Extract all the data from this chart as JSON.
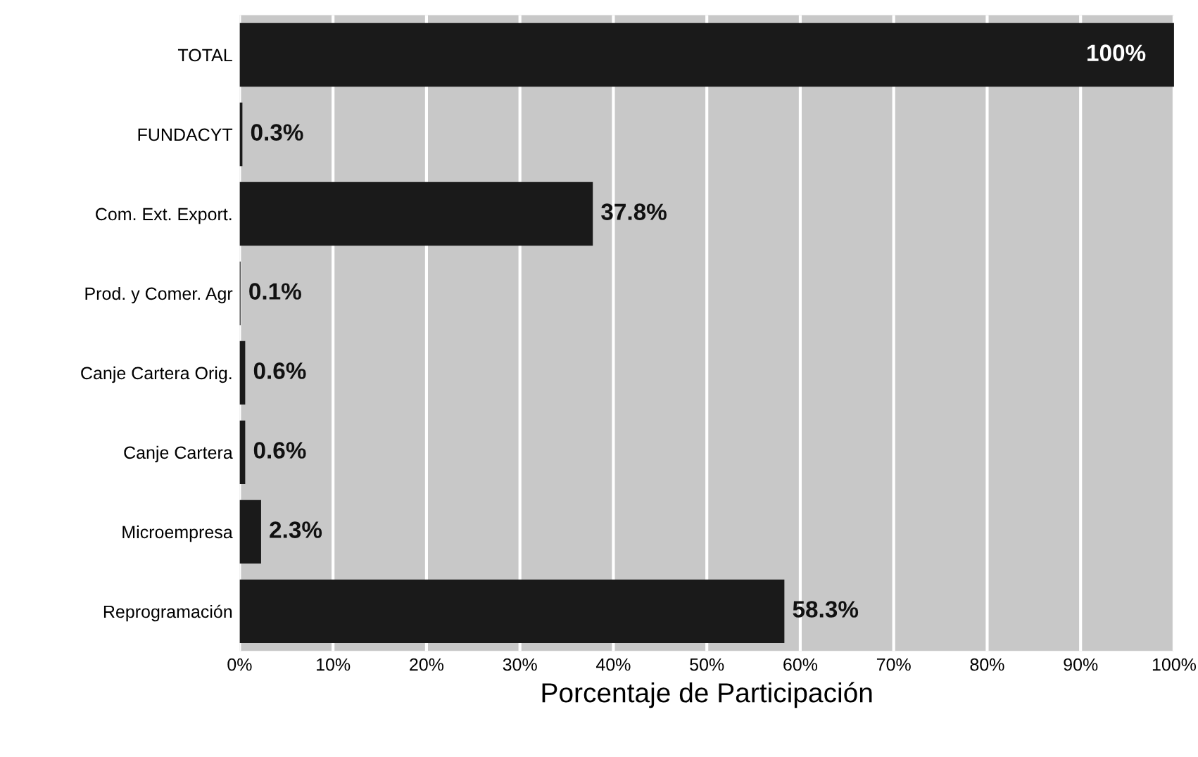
{
  "chart_data": {
    "type": "bar",
    "orientation": "horizontal",
    "xlabel": "Porcentaje de Participación",
    "categories": [
      "TOTAL",
      "FUNDACYT",
      "Com. Ext. Export.",
      "Prod. y Comer. Agr",
      "Canje Cartera Orig.",
      "Canje Cartera",
      "Microempresa",
      "Reprogramación"
    ],
    "values": [
      100,
      0.3,
      37.8,
      0.1,
      0.6,
      0.6,
      2.3,
      58.3
    ],
    "value_labels": [
      "100%",
      "0.3%",
      "37.8%",
      "0.1%",
      "0.6%",
      "0.6%",
      "2.3%",
      "58.3%"
    ],
    "color": "#1a1a1a",
    "xlim": [
      0,
      100
    ],
    "xticks": [
      {
        "value": 0,
        "label": "0%"
      },
      {
        "value": 10,
        "label": "10%"
      },
      {
        "value": 20,
        "label": "20%"
      },
      {
        "value": 30,
        "label": "30%"
      },
      {
        "value": 40,
        "label": "40%"
      },
      {
        "value": 50,
        "label": "50%"
      },
      {
        "value": 60,
        "label": "60%"
      },
      {
        "value": 70,
        "label": "70%"
      },
      {
        "value": 80,
        "label": "80%"
      },
      {
        "value": 90,
        "label": "90%"
      },
      {
        "value": 100,
        "label": "100%"
      }
    ],
    "grid": "x"
  }
}
